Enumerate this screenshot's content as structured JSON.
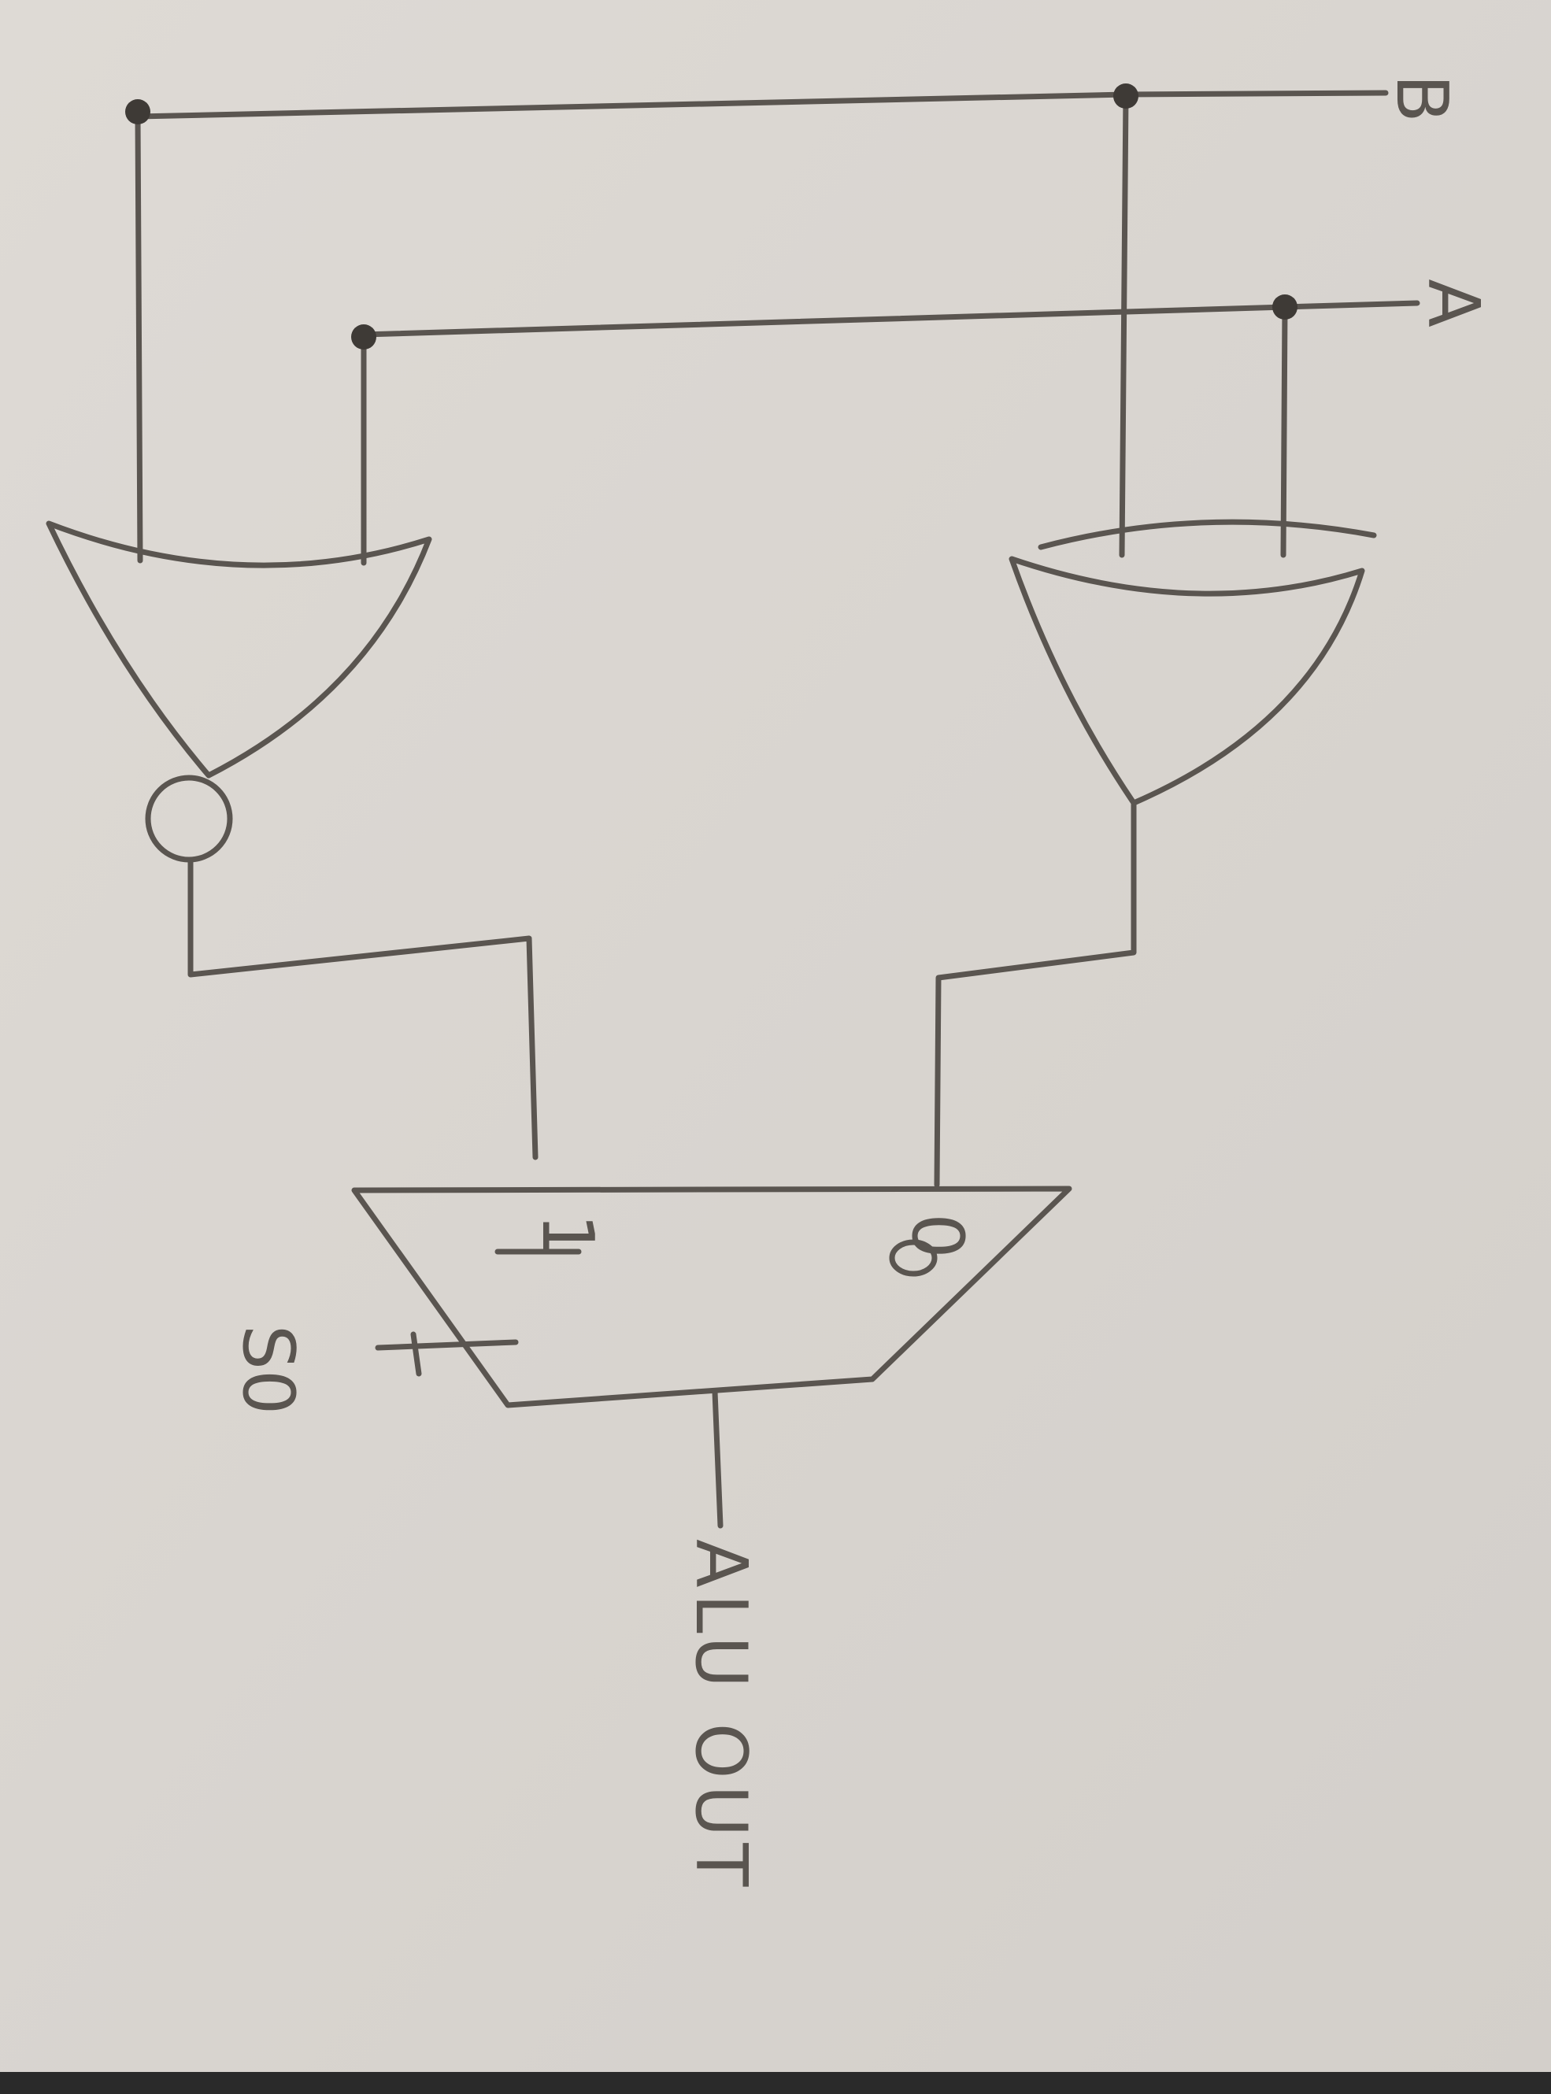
{
  "diagram": {
    "type": "logic-circuit",
    "inputs": [
      {
        "id": "B",
        "label": "B"
      },
      {
        "id": "A",
        "label": "A"
      }
    ],
    "gates": [
      {
        "id": "left-gate",
        "kind": "NOR",
        "inputs": [
          "B",
          "A"
        ]
      },
      {
        "id": "right-gate",
        "kind": "XOR",
        "inputs": [
          "B",
          "A"
        ]
      }
    ],
    "mux": {
      "id": "mux",
      "input_1_label": "1",
      "input_0_label": "0",
      "select_label": "S0",
      "input_1_source": "left-gate",
      "input_0_source": "right-gate"
    },
    "output": {
      "label": "ALU OUT"
    }
  },
  "colors": {
    "paper": "#d9d5d0",
    "ink": "#5a5550",
    "dot": "#3e3a36",
    "bottom_edge": "#2a2a2a"
  }
}
